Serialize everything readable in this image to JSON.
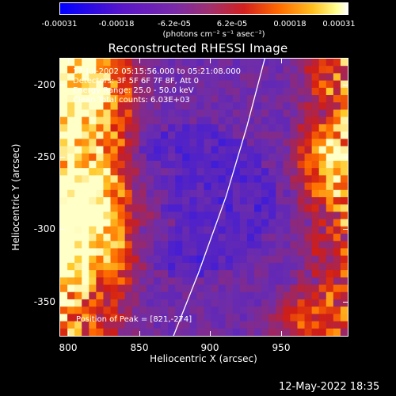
{
  "chart_data": {
    "type": "heatmap",
    "title": "Reconstructed RHESSI Image",
    "xlabel": "Heliocentric X (arcsec)",
    "ylabel": "Heliocentric Y (arcsec)",
    "xlim": [
      780,
      988
    ],
    "ylim": [
      -375,
      -176
    ],
    "x_ticks": [
      "800",
      "850",
      "900",
      "950"
    ],
    "y_ticks": [
      "-200",
      "-250",
      "-300",
      "-350"
    ],
    "colorbar": {
      "ticks": [
        "-0.00031",
        "-0.00018",
        "-6.2e-05",
        "6.2e-05",
        "0.00018",
        "0.00031"
      ],
      "unit_label": "(photons cm⁻² s⁻¹ asec⁻²)",
      "range": [
        -0.00031,
        0.00031
      ]
    },
    "annotations": {
      "time": "17-Jul-2002 05:15:56.000 to 05:21:08.000",
      "detectors": "Detectors: 3F 5F 6F 7F 8F, Att 0",
      "energy": "Energy Range: 25.0 - 50.0 keV",
      "clean": "Clean     Total counts: 6.03E+03",
      "peak": "Position of Peak = [821,-274]"
    },
    "peak": [
      821,
      -274
    ],
    "limb_curve": [
      [
        862,
        -375
      ],
      [
        880,
        -330
      ],
      [
        900,
        -275
      ],
      [
        915,
        -225
      ],
      [
        928,
        -176
      ]
    ],
    "colors": {
      "limb": "#ffffff",
      "background": "#000000",
      "text": "#ffffff"
    }
  },
  "footer": {
    "timestamp": "12-May-2022 18:35"
  }
}
